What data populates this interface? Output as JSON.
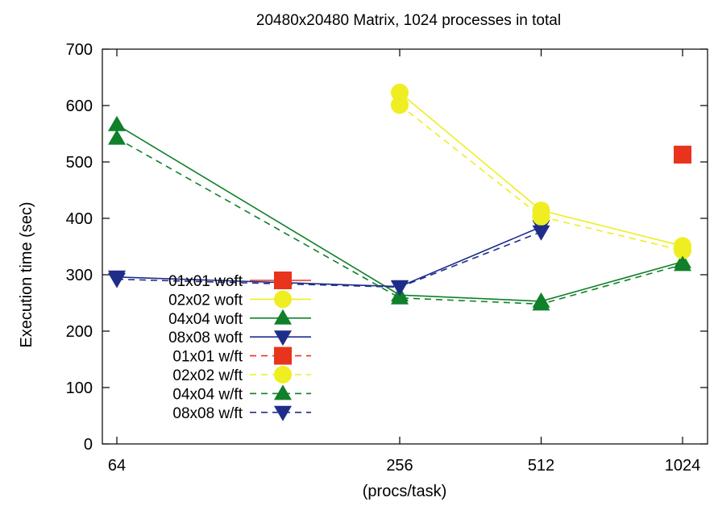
{
  "chart_data": {
    "type": "line",
    "title": "20480x20480 Matrix, 1024 processes in total",
    "xlabel": "(procs/task)",
    "ylabel": "Execution time (sec)",
    "x_scale": "log2",
    "x": [
      64,
      256,
      512,
      1024
    ],
    "x_tick_labels": [
      "64",
      "256",
      "512",
      "1024"
    ],
    "ylim": [
      0,
      700
    ],
    "y_ticks": [
      0,
      100,
      200,
      300,
      400,
      500,
      600,
      700
    ],
    "y_tick_labels": [
      "0",
      "100",
      "200",
      "300",
      "400",
      "500",
      "600",
      "700"
    ],
    "grid": false,
    "legend_position": "left-lower",
    "series": [
      {
        "name": "01x01 woft",
        "color": "#e8341c",
        "marker": "square",
        "dash": "solid",
        "points": [
          [
            1024,
            513
          ]
        ]
      },
      {
        "name": "02x02 woft",
        "color": "#eeee22",
        "marker": "circle",
        "dash": "solid",
        "points": [
          [
            256,
            623
          ],
          [
            512,
            414
          ],
          [
            1024,
            351
          ]
        ]
      },
      {
        "name": "04x04 woft",
        "color": "#10802a",
        "marker": "triangle-up",
        "dash": "solid",
        "points": [
          [
            64,
            566
          ],
          [
            256,
            264
          ],
          [
            512,
            253
          ],
          [
            1024,
            323
          ]
        ]
      },
      {
        "name": "08x08 woft",
        "color": "#1f2d8a",
        "marker": "triangle-down",
        "dash": "solid",
        "points": [
          [
            64,
            296
          ],
          [
            256,
            279
          ],
          [
            512,
            385
          ]
        ]
      },
      {
        "name": "01x01 w/ft",
        "color": "#e8341c",
        "marker": "square",
        "dash": "dashed",
        "points": [
          [
            1024,
            513
          ]
        ]
      },
      {
        "name": "02x02 w/ft",
        "color": "#eeee22",
        "marker": "circle",
        "dash": "dashed",
        "points": [
          [
            256,
            601
          ],
          [
            512,
            403
          ],
          [
            1024,
            343
          ]
        ]
      },
      {
        "name": "04x04 w/ft",
        "color": "#10802a",
        "marker": "triangle-up",
        "dash": "dashed",
        "points": [
          [
            64,
            542
          ],
          [
            256,
            259
          ],
          [
            512,
            248
          ],
          [
            1024,
            318
          ]
        ]
      },
      {
        "name": "08x08 w/ft",
        "color": "#1f2d8a",
        "marker": "triangle-down",
        "dash": "dashed",
        "points": [
          [
            64,
            292
          ],
          [
            256,
            278
          ],
          [
            512,
            376
          ]
        ]
      }
    ]
  }
}
